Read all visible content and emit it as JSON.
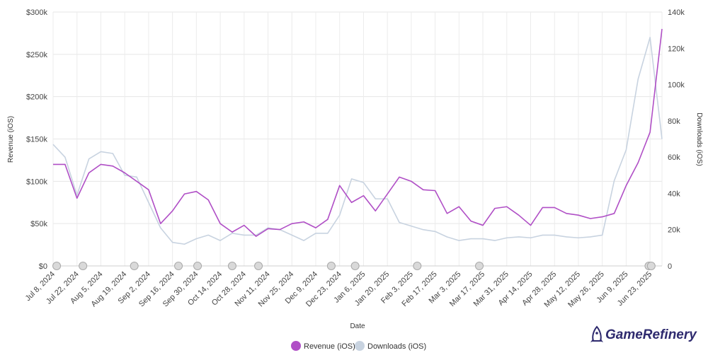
{
  "chart_data": {
    "type": "line",
    "xlabel": "Date",
    "ylabel_left": "Revenue (iOS)",
    "ylabel_right": "Downloads (iOS)",
    "ylim_left": [
      0,
      300000
    ],
    "ylim_right": [
      0,
      140000
    ],
    "y_ticks_left": [
      "$0",
      "$50k",
      "$100k",
      "$150k",
      "$200k",
      "$250k",
      "$300k"
    ],
    "y_ticks_right": [
      "0",
      "20k",
      "40k",
      "60k",
      "80k",
      "100k",
      "120k",
      "140k"
    ],
    "x_tick_labels": [
      "Jul 8, 2024",
      "Jul 22, 2024",
      "Aug 5, 2024",
      "Aug 19, 2024",
      "Sep 2, 2024",
      "Sep 16, 2024",
      "Sep 30, 2024",
      "Oct 14, 2024",
      "Oct 28, 2024",
      "Nov 11, 2024",
      "Nov 25, 2024",
      "Dec 9, 2024",
      "Dec 23, 2024",
      "Jan 6, 2025",
      "Jan 20, 2025",
      "Feb 3, 2025",
      "Feb 17, 2025",
      "Mar 3, 2025",
      "Mar 17, 2025",
      "Mar 31, 2025",
      "Apr 14, 2025",
      "Apr 28, 2025",
      "May 12, 2025",
      "May 26, 2025",
      "Jun 9, 2025",
      "Jun 23, 2025"
    ],
    "x_count": 52,
    "grid": true,
    "series": [
      {
        "name": "Revenue (iOS)",
        "axis": "left",
        "color": "#b04fc6",
        "values": [
          120000,
          120000,
          80000,
          110000,
          120000,
          118000,
          110000,
          100000,
          90000,
          50000,
          65000,
          85000,
          88000,
          78000,
          50000,
          40000,
          48000,
          35000,
          44000,
          43000,
          50000,
          52000,
          45000,
          55000,
          95000,
          75000,
          83000,
          65000,
          85000,
          105000,
          100000,
          90000,
          89000,
          62000,
          70000,
          53000,
          48000,
          68000,
          70000,
          60000,
          48000,
          69000,
          69000,
          62000,
          60000,
          56000,
          58000,
          62000,
          95000,
          122000,
          158000,
          280000
        ]
      },
      {
        "name": "Downloads (iOS)",
        "axis": "right",
        "color": "#c8d3e0",
        "values": [
          67000,
          60000,
          39000,
          59000,
          63000,
          62000,
          50000,
          49000,
          35000,
          21000,
          13000,
          12000,
          15000,
          17000,
          14000,
          18000,
          17000,
          17000,
          21000,
          20000,
          17000,
          14000,
          18000,
          18000,
          28000,
          48000,
          46000,
          37000,
          37000,
          24000,
          22000,
          20000,
          19000,
          16000,
          14000,
          15000,
          15000,
          14000,
          15500,
          16000,
          15500,
          17000,
          17000,
          16000,
          15500,
          16000,
          17000,
          47000,
          64000,
          103000,
          126000,
          70000
        ]
      }
    ],
    "event_markers": [
      0.3,
      2.5,
      6.8,
      10.5,
      12.1,
      15.0,
      17.2,
      23.3,
      25.3,
      30.5,
      35.7,
      49.9,
      50.1
    ],
    "legend": "bottom-center"
  },
  "branding": {
    "logo_text": "GameRefinery"
  },
  "legend": {
    "revenue": "Revenue (iOS)",
    "downloads": "Downloads (iOS)"
  }
}
